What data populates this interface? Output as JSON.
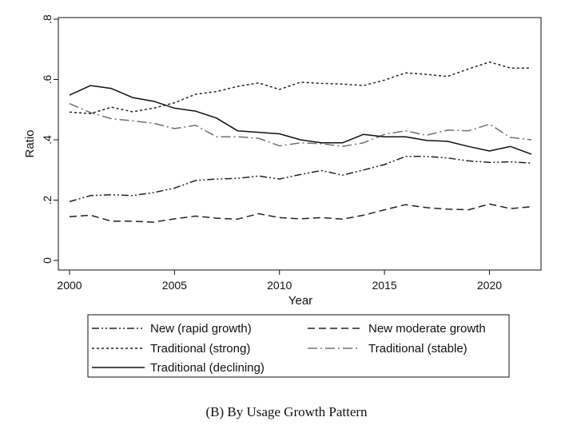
{
  "caption": "(B) By Usage Growth Pattern",
  "chart_data": {
    "type": "line",
    "xlabel": "Year",
    "ylabel": "Ratio",
    "xlim": [
      2000,
      2022
    ],
    "ylim": [
      0,
      0.8
    ],
    "xticks": [
      2000,
      2005,
      2010,
      2015,
      2020
    ],
    "yticks": [
      0,
      0.2,
      0.4,
      0.6,
      0.8
    ],
    "ytick_labels": [
      "0",
      ".2",
      ".4",
      ".6",
      ".8"
    ],
    "grid": false,
    "legend_position": "bottom",
    "x": [
      2000,
      2001,
      2002,
      2003,
      2004,
      2005,
      2006,
      2007,
      2008,
      2009,
      2010,
      2011,
      2012,
      2013,
      2014,
      2015,
      2016,
      2017,
      2018,
      2019,
      2020,
      2021,
      2022
    ],
    "series": [
      {
        "name": "New (rapid growth)",
        "dash": "dashdotdot",
        "color": "#222222",
        "values": [
          0.195,
          0.215,
          0.218,
          0.215,
          0.225,
          0.24,
          0.265,
          0.27,
          0.272,
          0.28,
          0.27,
          0.285,
          0.298,
          0.283,
          0.3,
          0.318,
          0.345,
          0.345,
          0.34,
          0.33,
          0.325,
          0.327,
          0.323
        ]
      },
      {
        "name": "New moderate growth",
        "dash": "longdash",
        "color": "#222222",
        "values": [
          0.145,
          0.15,
          0.13,
          0.13,
          0.127,
          0.138,
          0.147,
          0.14,
          0.137,
          0.155,
          0.142,
          0.138,
          0.142,
          0.137,
          0.15,
          0.168,
          0.185,
          0.175,
          0.17,
          0.168,
          0.187,
          0.172,
          0.178
        ]
      },
      {
        "name": "Traditional (strong)",
        "dash": "shortdash",
        "color": "#222222",
        "values": [
          0.492,
          0.487,
          0.508,
          0.493,
          0.505,
          0.523,
          0.551,
          0.56,
          0.577,
          0.589,
          0.567,
          0.591,
          0.587,
          0.585,
          0.58,
          0.598,
          0.622,
          0.617,
          0.61,
          0.635,
          0.658,
          0.638,
          0.638
        ]
      },
      {
        "name": "Traditional (stable)",
        "dash": "longdashdot",
        "color": "#707070",
        "values": [
          0.52,
          0.49,
          0.47,
          0.463,
          0.455,
          0.437,
          0.448,
          0.41,
          0.41,
          0.405,
          0.38,
          0.39,
          0.387,
          0.378,
          0.39,
          0.418,
          0.43,
          0.415,
          0.432,
          0.43,
          0.452,
          0.408,
          0.4
        ]
      },
      {
        "name": "Traditional (declining)",
        "dash": "solid",
        "color": "#111111",
        "values": [
          0.548,
          0.58,
          0.57,
          0.54,
          0.528,
          0.505,
          0.495,
          0.472,
          0.43,
          0.425,
          0.42,
          0.4,
          0.39,
          0.39,
          0.418,
          0.41,
          0.41,
          0.398,
          0.395,
          0.378,
          0.363,
          0.378,
          0.352
        ]
      }
    ]
  }
}
